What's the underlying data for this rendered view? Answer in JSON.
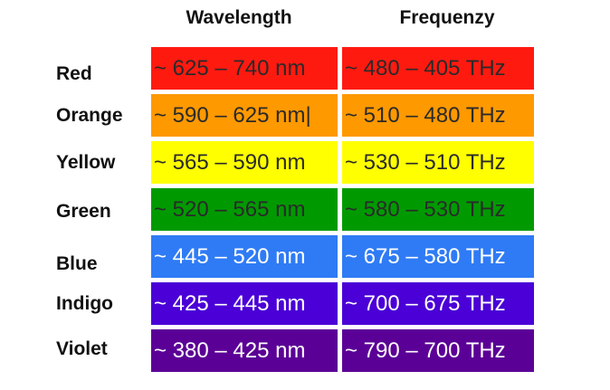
{
  "header": {
    "columns": [
      "Wavelength",
      "Frequenzy"
    ]
  },
  "rows": [
    {
      "label": "Red",
      "cells": [
        "~ 625 – 740 nm",
        "~ 480 – 405 THz"
      ]
    },
    {
      "label": "Orange",
      "cells": [
        "~ 590 – 625 nm|",
        "~ 510 – 480 THz"
      ]
    },
    {
      "label": "Yellow",
      "cells": [
        "~ 565 – 590 nm",
        "~ 530 – 510 THz"
      ]
    },
    {
      "label": "Green",
      "cells": [
        "~ 520 – 565 nm",
        "~ 580 – 530 THz"
      ]
    },
    {
      "label": "Blue",
      "cells": [
        "~ 445 – 520 nm",
        "~ 675 – 580 THz"
      ]
    },
    {
      "label": "Indigo",
      "cells": [
        "~ 425 – 445 nm",
        "~ 700 – 675 THz"
      ]
    },
    {
      "label": "Violet",
      "cells": [
        "~ 380 – 425 nm",
        "~ 790 – 700 THz"
      ]
    }
  ]
}
